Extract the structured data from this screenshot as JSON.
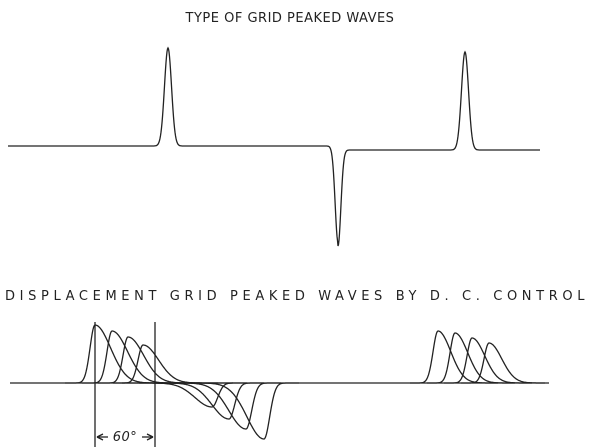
{
  "title": "TYPE OF GRID PEAKED WAVES",
  "subtitle": "DISPLACEMENT GRID PEAKED WAVES BY D. C. CONTROL",
  "angle_label": "60°"
}
